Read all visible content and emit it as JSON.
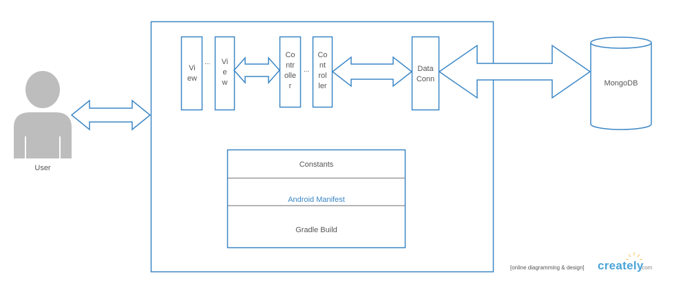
{
  "user": {
    "label": "User"
  },
  "app": {
    "view1": {
      "label": "Vi\new"
    },
    "view2": {
      "label": "Vi\ne\nw"
    },
    "view_ellipsis": "...",
    "controller1": {
      "label": "Co\nntr\nolle\nr"
    },
    "controller2": {
      "label": "Co\nnt\nrol\nler"
    },
    "controller_ellipsis": "...",
    "data_conn": {
      "label": "Data\nConn"
    },
    "resources": {
      "constants": "Constants",
      "manifest": "Android Manifest",
      "gradle": "Gradle Build"
    }
  },
  "database": {
    "label": "MongoDB"
  },
  "watermark": {
    "tagline": "[online diagramming & design]",
    "brand": "creately",
    "suffix": ".com"
  },
  "colors": {
    "stroke": "#3a86c6",
    "user_fill": "#bdbdbd",
    "divider": "#9a9a9a",
    "text": "#555555"
  }
}
